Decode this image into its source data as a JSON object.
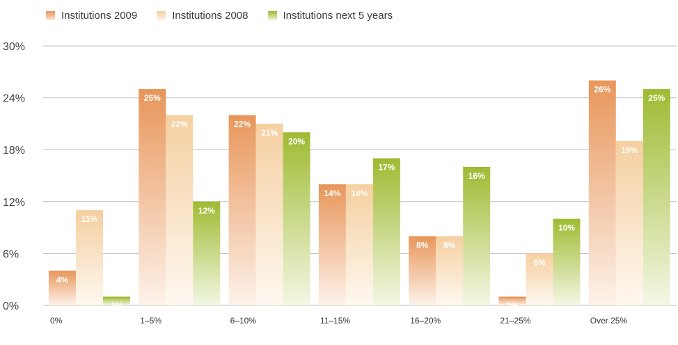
{
  "chart_data": {
    "type": "bar",
    "categories": [
      "0%",
      "1–5%",
      "6–10%",
      "11–15%",
      "16–20%",
      "21–25%",
      "Over 25%"
    ],
    "series": [
      {
        "name": "Institutions 2009",
        "values": [
          4,
          25,
          22,
          14,
          8,
          1,
          26
        ],
        "labels": [
          "4%",
          "25%",
          "22%",
          "14%",
          "8%",
          "1%",
          "26%"
        ],
        "color": "#e8965a"
      },
      {
        "name": "Institutions 2008",
        "values": [
          11,
          22,
          21,
          14,
          8,
          6,
          19
        ],
        "labels": [
          "11%",
          "22%",
          "21%",
          "14%",
          "8%",
          "6%",
          "19%"
        ],
        "color": "#f5cfa0"
      },
      {
        "name": "Institutions next 5 years",
        "values": [
          1,
          12,
          20,
          17,
          16,
          10,
          25
        ],
        "labels": [
          "1%",
          "12%",
          "20%",
          "17%",
          "16%",
          "10%",
          "25%"
        ],
        "color": "#9fbb32"
      }
    ],
    "yticks": [
      "0%",
      "6%",
      "12%",
      "18%",
      "24%",
      "30%"
    ],
    "ylim": [
      0,
      30
    ],
    "grid": true,
    "legend_position": "top-left"
  }
}
